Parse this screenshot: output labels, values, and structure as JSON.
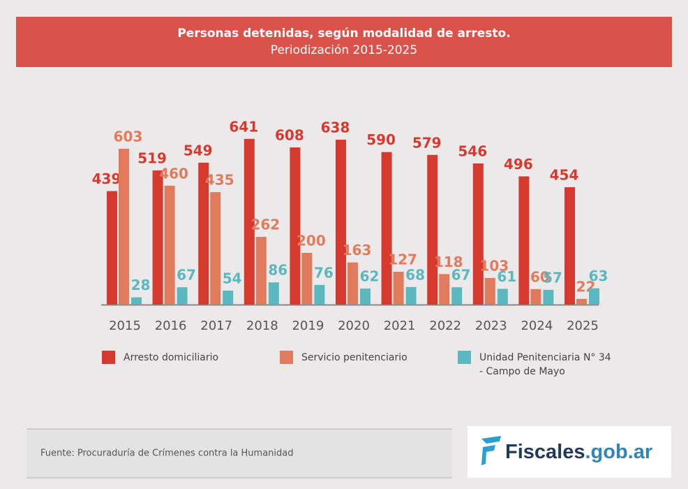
{
  "chart_data": {
    "type": "bar",
    "title": "Personas detenidas, según modalidad de arresto.",
    "subtitle": "Periodización 2015-2025",
    "categories": [
      "2015",
      "2016",
      "2017",
      "2018",
      "2019",
      "2020",
      "2021",
      "2022",
      "2023",
      "2024",
      "2025"
    ],
    "series": [
      {
        "name": "Arresto domiciliario",
        "color": "#d63a2f",
        "values": [
          439,
          519,
          549,
          641,
          608,
          638,
          590,
          579,
          546,
          496,
          454
        ]
      },
      {
        "name": "Servicio penitenciario",
        "color": "#e07b5e",
        "values": [
          603,
          460,
          435,
          262,
          200,
          163,
          127,
          118,
          103,
          60,
          22
        ]
      },
      {
        "name": "Unidad Penitenciaria N° 34 - Campo de Mayo",
        "color": "#5bb8bf",
        "values": [
          28,
          67,
          54,
          86,
          76,
          62,
          68,
          67,
          61,
          57,
          63
        ]
      }
    ]
  },
  "source": "Fuente: Procuraduría de Crímenes contra la Humanidad",
  "logo": {
    "name": "Fiscales",
    "domain": ".gob.ar"
  }
}
